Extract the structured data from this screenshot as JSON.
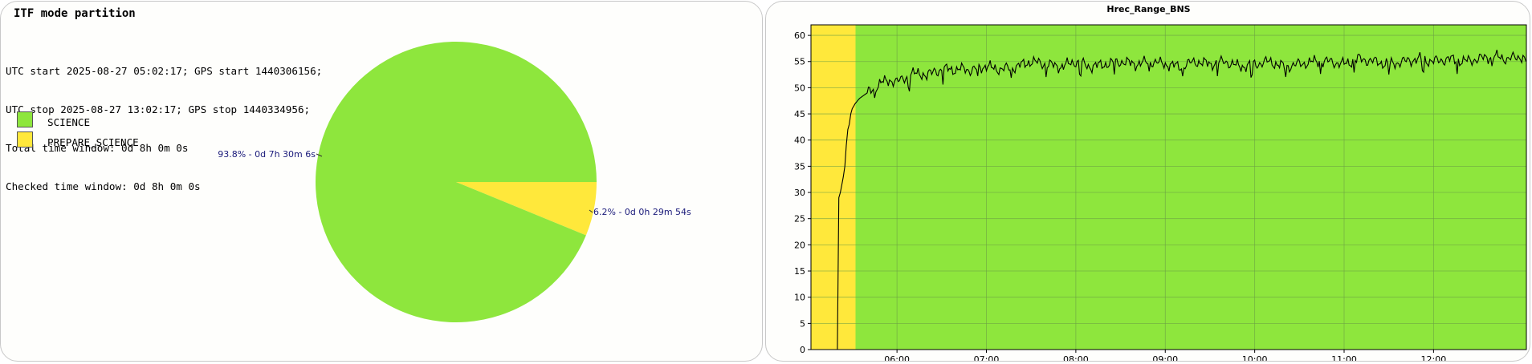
{
  "left": {
    "title": "ITF mode partition",
    "info_lines": [
      "UTC start 2025-08-27 05:02:17; GPS start 1440306156;",
      "UTC stop 2025-08-27 13:02:17; GPS stop 1440334956;",
      "Total time window: 0d 8h 0m 0s",
      "Checked time window: 0d 8h 0m 0s"
    ]
  },
  "colors": {
    "science": "#8ee63d",
    "prepare": "#ffe83b",
    "label_text": "#1a1a7a",
    "line": "#000000"
  },
  "chart_data": [
    {
      "type": "pie",
      "title": "",
      "slices": [
        {
          "name": "SCIENCE",
          "fraction": 0.938,
          "label": "93.8% - 0d 7h 30m 6s",
          "color": "#8ee63d"
        },
        {
          "name": "PREPARE_SCIENCE",
          "fraction": 0.062,
          "label": "6.2% - 0d 0h 29m 54s",
          "color": "#ffe83b"
        }
      ],
      "legend_position": "top-left"
    },
    {
      "type": "line",
      "title": "Hrec_Range_BNS",
      "xlabel": "",
      "ylabel": "",
      "xlim": [
        "05:02:17",
        "13:02:17"
      ],
      "ylim": [
        0,
        62
      ],
      "x_ticks": [
        "06:00",
        "07:00",
        "08:00",
        "09:00",
        "10:00",
        "11:00",
        "12:00"
      ],
      "y_ticks": [
        0,
        5,
        10,
        15,
        20,
        25,
        30,
        35,
        40,
        45,
        50,
        55,
        60
      ],
      "grid": true,
      "background_bands": [
        {
          "from": "05:02:17",
          "to": "05:32:11",
          "state": "PREPARE_SCIENCE",
          "color": "#ffe83b"
        },
        {
          "from": "05:32:11",
          "to": "13:02:17",
          "state": "SCIENCE",
          "color": "#8ee63d"
        }
      ],
      "series": [
        {
          "x": [
            "05:20",
            "05:21",
            "05:22",
            "05:24",
            "05:25",
            "05:26",
            "05:27",
            "05:28",
            "05:29",
            "05:30",
            "05:32",
            "05:35",
            "05:40",
            "05:45",
            "05:50",
            "05:55",
            "06:00",
            "06:05",
            "06:10",
            "06:15",
            "06:20",
            "06:25",
            "06:30",
            "06:35",
            "06:40",
            "06:45",
            "06:50",
            "06:55",
            "07:00",
            "07:10",
            "07:20",
            "07:30",
            "07:40",
            "07:50",
            "08:00",
            "08:10",
            "08:20",
            "08:30",
            "08:40",
            "08:50",
            "09:00",
            "09:10",
            "09:20",
            "09:30",
            "09:40",
            "09:50",
            "10:00",
            "10:10",
            "10:20",
            "10:30",
            "10:40",
            "10:50",
            "11:00",
            "11:10",
            "11:20",
            "11:30",
            "11:40",
            "11:50",
            "12:00",
            "12:10",
            "12:20",
            "12:30",
            "12:40",
            "12:50",
            "13:00",
            "13:02"
          ],
          "y": [
            0,
            29,
            30,
            33,
            35,
            39,
            42,
            43,
            45,
            46,
            47,
            48,
            49,
            50,
            51,
            51.5,
            51,
            52,
            52.5,
            53,
            52,
            53.5,
            53,
            54,
            53,
            54,
            53,
            54,
            54,
            53.5,
            54,
            55,
            54.5,
            54,
            55,
            54,
            54.5,
            55,
            54.5,
            55,
            54.5,
            54,
            55,
            54.5,
            55,
            54,
            54.5,
            55,
            54,
            54.5,
            55,
            55,
            54.5,
            55.5,
            55,
            54.5,
            55,
            55.5,
            55,
            55.5,
            55,
            55.5,
            56,
            55.5,
            56,
            55
          ]
        }
      ]
    }
  ]
}
